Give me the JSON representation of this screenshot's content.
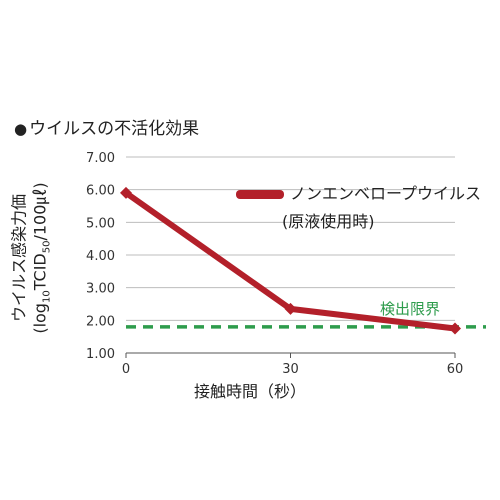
{
  "title": "ウイルスの不活化効果",
  "title_bullet": "●",
  "colors": {
    "series": "#b3202a",
    "limit": "#2e9c4c",
    "grid": "#bdbdbd",
    "axis": "#555555"
  },
  "chart_data": {
    "type": "line",
    "title": "ウイルスの不活化効果",
    "xlabel": "接触時間（秒）",
    "ylabel_line1": "ウイルス感染力価",
    "ylabel_line2_prefix": "(log",
    "ylabel_line2_sub1": "10",
    "ylabel_line2_mid": "TCID",
    "ylabel_line2_sub2": "50",
    "ylabel_line2_suffix": "/100㎕)",
    "xlim": [
      0,
      60
    ],
    "ylim": [
      1.0,
      7.0
    ],
    "x_ticks": [
      "0",
      "30",
      "60"
    ],
    "x_tick_values": [
      0,
      30,
      60
    ],
    "y_ticks": [
      "1.00",
      "2.00",
      "3.00",
      "4.00",
      "5.00",
      "6.00",
      "7.00"
    ],
    "y_tick_values": [
      1,
      2,
      3,
      4,
      5,
      6,
      7
    ],
    "grid": true,
    "legend_position": "top-right",
    "series": [
      {
        "name_line1": "ノンエンベロープウイルス",
        "name_line2": "(原液使用時)",
        "x": [
          0,
          30,
          60
        ],
        "y": [
          5.9,
          2.35,
          1.75
        ]
      }
    ],
    "detection_limit": {
      "label": "検出限界",
      "value": 1.8
    }
  }
}
